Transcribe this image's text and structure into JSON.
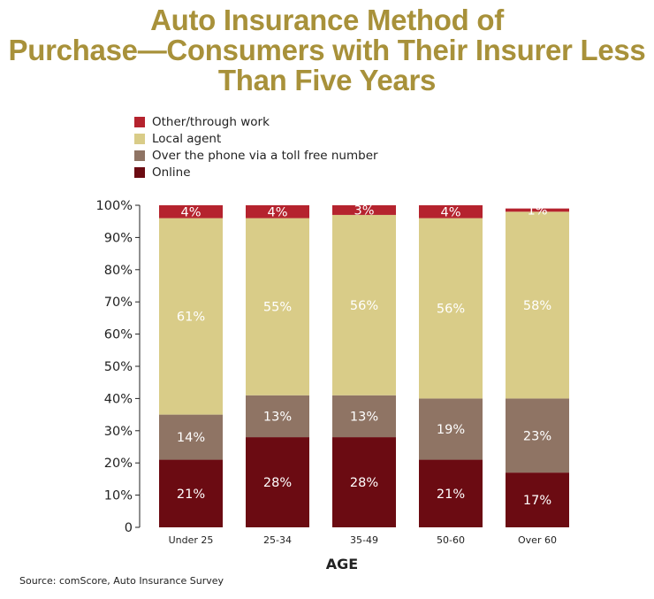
{
  "chart_data": {
    "type": "bar",
    "stacked": true,
    "title_lines": [
      "Auto Insurance Method of",
      "Purchase—Consumers with Their Insurer Less",
      "Than Five Years"
    ],
    "xlabel": "AGE",
    "ylabel": "",
    "ylim": [
      0,
      100
    ],
    "yticks": [
      "0",
      "10%",
      "20%",
      "30%",
      "40%",
      "50%",
      "60%",
      "70%",
      "80%",
      "90%",
      "100%"
    ],
    "categories": [
      "Under 25",
      "25-34",
      "35-49",
      "50-60",
      "Over 60"
    ],
    "series": [
      {
        "name": "Online",
        "color": "#6b0b12",
        "values": [
          21,
          28,
          28,
          21,
          17
        ],
        "labels": [
          "21%",
          "28%",
          "28%",
          "21%",
          "17%"
        ]
      },
      {
        "name": "Over the phone via a toll free number",
        "color": "#8f7464",
        "values": [
          14,
          13,
          13,
          19,
          23
        ],
        "labels": [
          "14%",
          "13%",
          "13%",
          "19%",
          "23%"
        ]
      },
      {
        "name": "Local agent",
        "color": "#d9cc88",
        "values": [
          61,
          55,
          56,
          56,
          58
        ],
        "labels": [
          "61%",
          "55%",
          "56%",
          "56%",
          "58%"
        ]
      },
      {
        "name": "Other/through work",
        "color": "#b5232e",
        "values": [
          4,
          4,
          3,
          4,
          1
        ],
        "labels": [
          "4%",
          "4%",
          "3%",
          "4%",
          "1%"
        ]
      }
    ],
    "legend_order": [
      "Other/through work",
      "Local agent",
      "Over the phone via a toll free number",
      "Online"
    ],
    "legend_position": "top-left",
    "grid": false
  },
  "source": "Source: comScore, Auto Insurance Survey"
}
